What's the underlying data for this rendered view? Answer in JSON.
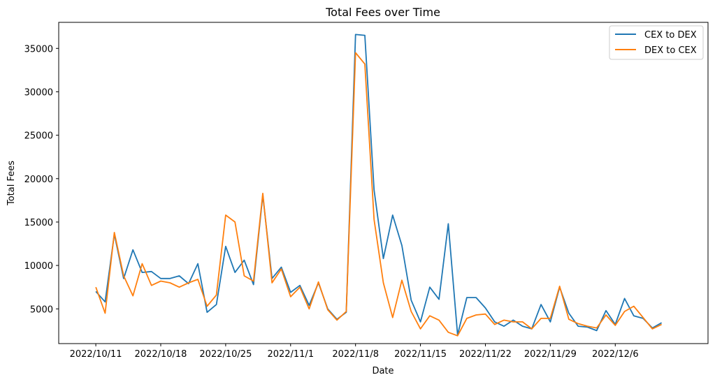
{
  "chart_data": {
    "type": "line",
    "title": "Total Fees over Time",
    "xlabel": "Date",
    "ylabel": "Total Fees",
    "x_tick_labels": [
      "2022/10/11",
      "2022/10/18",
      "2022/10/25",
      "2022/11/1",
      "2022/11/8",
      "2022/11/15",
      "2022/11/22",
      "2022/11/29",
      "2022/12/6"
    ],
    "x_tick_dates": [
      "2022-10-11",
      "2022-10-18",
      "2022-10-25",
      "2022-11-01",
      "2022-11-08",
      "2022-11-15",
      "2022-11-22",
      "2022-11-29",
      "2022-12-06"
    ],
    "y_ticks": [
      5000,
      10000,
      15000,
      20000,
      25000,
      30000,
      35000
    ],
    "xlim": [
      "2022-10-07",
      "2022-12-16"
    ],
    "ylim": [
      1000,
      38000
    ],
    "grid": false,
    "legend_position": "top-right",
    "x": [
      "2022-10-11",
      "2022-10-12",
      "2022-10-13",
      "2022-10-14",
      "2022-10-15",
      "2022-10-16",
      "2022-10-17",
      "2022-10-18",
      "2022-10-19",
      "2022-10-20",
      "2022-10-21",
      "2022-10-22",
      "2022-10-23",
      "2022-10-24",
      "2022-10-25",
      "2022-10-26",
      "2022-10-27",
      "2022-10-28",
      "2022-10-29",
      "2022-10-30",
      "2022-10-31",
      "2022-11-01",
      "2022-11-02",
      "2022-11-03",
      "2022-11-04",
      "2022-11-05",
      "2022-11-06",
      "2022-11-07",
      "2022-11-08",
      "2022-11-09",
      "2022-11-10",
      "2022-11-11",
      "2022-11-12",
      "2022-11-13",
      "2022-11-14",
      "2022-11-15",
      "2022-11-16",
      "2022-11-17",
      "2022-11-18",
      "2022-11-19",
      "2022-11-20",
      "2022-11-21",
      "2022-11-22",
      "2022-11-23",
      "2022-11-24",
      "2022-11-25",
      "2022-11-26",
      "2022-11-27",
      "2022-11-28",
      "2022-11-29",
      "2022-11-30",
      "2022-12-01",
      "2022-12-02",
      "2022-12-03",
      "2022-12-04",
      "2022-12-05",
      "2022-12-06",
      "2022-12-07",
      "2022-12-08",
      "2022-12-09",
      "2022-12-10",
      "2022-12-11",
      "2022-12-12",
      "2022-12-13"
    ],
    "series": [
      {
        "name": "CEX to DEX",
        "color": "#1f77b4",
        "values": [
          7000,
          5800,
          13600,
          8500,
          11800,
          9200,
          9300,
          8500,
          8500,
          8800,
          7900,
          10200,
          4600,
          5500,
          12200,
          9200,
          10600,
          7800,
          18100,
          8500,
          9800,
          6900,
          7700,
          5400,
          8000,
          5000,
          3800,
          4600,
          36600,
          36500,
          18700,
          10800,
          15800,
          12300,
          6000,
          3500,
          7500,
          6100,
          14800,
          2000,
          6300,
          6300,
          5100,
          3500,
          3000,
          3700,
          3000,
          2700,
          5500,
          3500,
          7500,
          4500,
          3000,
          2900,
          2500,
          4800,
          3200,
          6200,
          4200,
          3900,
          2800,
          3400,
          null,
          null
        ]
      },
      {
        "name": "DEX to CEX",
        "color": "#ff7f0e",
        "values": [
          7500,
          4500,
          13800,
          8800,
          6500,
          10200,
          7700,
          8200,
          8000,
          7500,
          8000,
          8400,
          5300,
          6600,
          15800,
          15000,
          8800,
          8200,
          18300,
          8000,
          9600,
          6400,
          7500,
          5000,
          8100,
          4900,
          3700,
          4700,
          34500,
          33200,
          15300,
          8000,
          4000,
          8300,
          4700,
          2700,
          4200,
          3700,
          2300,
          1900,
          3900,
          4300,
          4400,
          3200,
          3700,
          3500,
          3500,
          2700,
          3900,
          3900,
          7600,
          3800,
          3300,
          3000,
          2800,
          4300,
          3100,
          4700,
          5300,
          4000,
          2700,
          3200,
          null,
          null
        ]
      }
    ]
  }
}
